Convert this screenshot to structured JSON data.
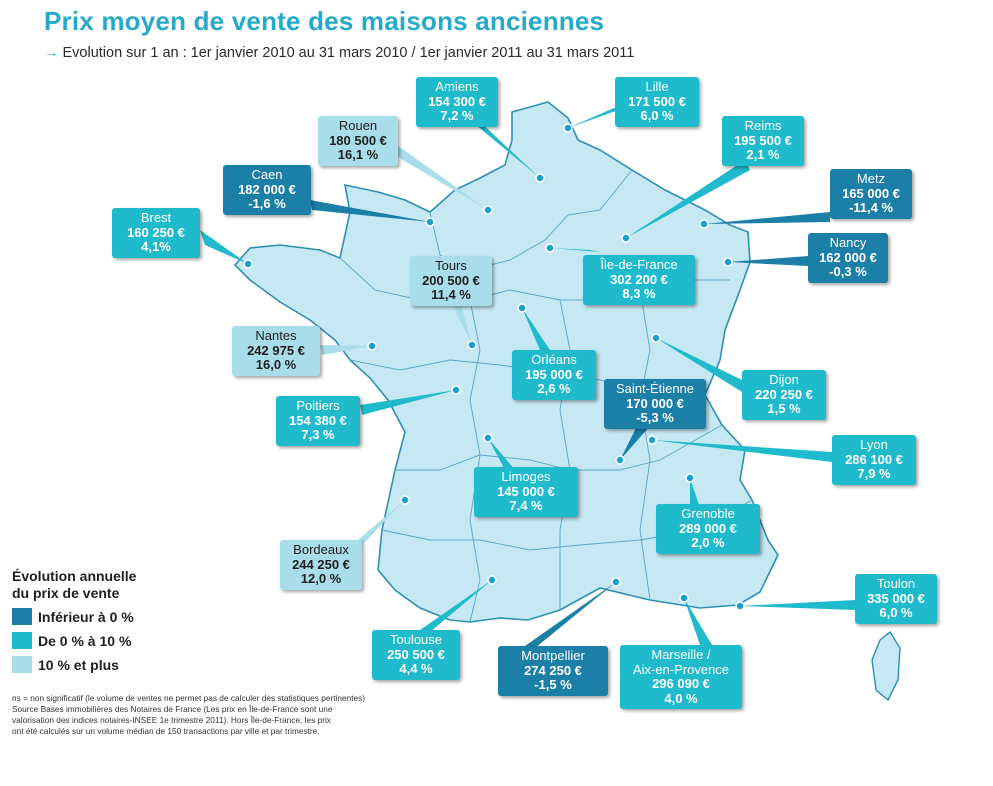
{
  "title": "Prix moyen de vente des maisons anciennes",
  "subtitle": "Evolution sur 1 an : 1er janvier 2010 au 31 mars 2010 / 1er janvier 2011 au 31 mars 2011",
  "subtitle_icon": "arrow-right-icon",
  "colors": {
    "title": "#27a9c9",
    "negative": "#1b7fa7",
    "zero_to_ten": "#1fbbcc",
    "ten_plus": "#a9dde9",
    "map_fill": "#c5e8f3",
    "map_border": "#2f8fb3"
  },
  "legend": {
    "title_line1": "Évolution annuelle",
    "title_line2": "du prix de vente",
    "items": [
      {
        "label": "Inférieur à 0 %",
        "level": "neg"
      },
      {
        "label": "De 0 % à 10 %",
        "level": "mid"
      },
      {
        "label": "10 % et plus",
        "level": "high"
      }
    ]
  },
  "notes": {
    "line1": "ns = non significatif (le volume de ventes ne permet pas de calculer des statistiques pertinentes)",
    "line2": "Source Bases immobilières des Notaires de France (Les prix en Île-de-France sont une",
    "line3": "valorisation des indices notaires-INSEE 1e trimestre 2011). Hors Île-de-France, les prix",
    "line4": "ont été calculés sur un volume médian de 150 transactions par ville et par trimestre."
  },
  "cities": [
    {
      "id": "amiens",
      "city": "Amiens",
      "price": "154 300 €",
      "change": "7,2 %",
      "level": "mid"
    },
    {
      "id": "lille",
      "city": "Lille",
      "price": "171 500 €",
      "change": "6,0 %",
      "level": "mid"
    },
    {
      "id": "rouen",
      "city": "Rouen",
      "price": "180 500 €",
      "change": "16,1 %",
      "level": "high"
    },
    {
      "id": "reims",
      "city": "Reims",
      "price": "195 500 €",
      "change": "2,1 %",
      "level": "mid"
    },
    {
      "id": "caen",
      "city": "Caen",
      "price": "182 000 €",
      "change": "-1,6 %",
      "level": "neg"
    },
    {
      "id": "metz",
      "city": "Metz",
      "price": "165 000 €",
      "change": "-11,4 %",
      "level": "neg"
    },
    {
      "id": "brest",
      "city": "Brest",
      "price": "160 250 €",
      "change": "4,1%",
      "level": "mid"
    },
    {
      "id": "nancy",
      "city": "Nancy",
      "price": "162 000 €",
      "change": "-0,3 %",
      "level": "neg"
    },
    {
      "id": "tours",
      "city": "Tours",
      "price": "200 500 €",
      "change": "11,4 %",
      "level": "high"
    },
    {
      "id": "idf",
      "city": "Île-de-France",
      "price": "302 200 €",
      "change": "8,3 %",
      "level": "mid"
    },
    {
      "id": "nantes",
      "city": "Nantes",
      "price": "242 975 €",
      "change": "16,0 %",
      "level": "high"
    },
    {
      "id": "orleans",
      "city": "Orléans",
      "price": "195 000 €",
      "change": "2,6 %",
      "level": "mid"
    },
    {
      "id": "dijon",
      "city": "Dijon",
      "price": "220 250 €",
      "change": "1,5 %",
      "level": "mid"
    },
    {
      "id": "saintetienne",
      "city": "Saint-Étienne",
      "price": "170 000 €",
      "change": "-5,3 %",
      "level": "neg"
    },
    {
      "id": "poitiers",
      "city": "Poitiers",
      "price": "154 380 €",
      "change": "7,3 %",
      "level": "mid"
    },
    {
      "id": "lyon",
      "city": "Lyon",
      "price": "286 100 €",
      "change": "7,9 %",
      "level": "mid"
    },
    {
      "id": "limoges",
      "city": "Limoges",
      "price": "145 000 €",
      "change": "7,4 %",
      "level": "mid"
    },
    {
      "id": "grenoble",
      "city": "Grenoble",
      "price": "289 000 €",
      "change": "2,0 %",
      "level": "mid"
    },
    {
      "id": "bordeaux",
      "city": "Bordeaux",
      "price": "244 250 €",
      "change": "12,0 %",
      "level": "high"
    },
    {
      "id": "toulon",
      "city": "Toulon",
      "price": "335 000 €",
      "change": "6,0 %",
      "level": "mid"
    },
    {
      "id": "toulouse",
      "city": "Toulouse",
      "price": "250 500 €",
      "change": "4,4 %",
      "level": "mid"
    },
    {
      "id": "montpellier",
      "city": "Montpellier",
      "price": "274 250 €",
      "change": "-1,5 %",
      "level": "neg"
    },
    {
      "id": "marseille",
      "city": "Marseille /\nAix-en-Provence",
      "price": "296 090 €",
      "change": "4,0 %",
      "level": "mid"
    }
  ]
}
